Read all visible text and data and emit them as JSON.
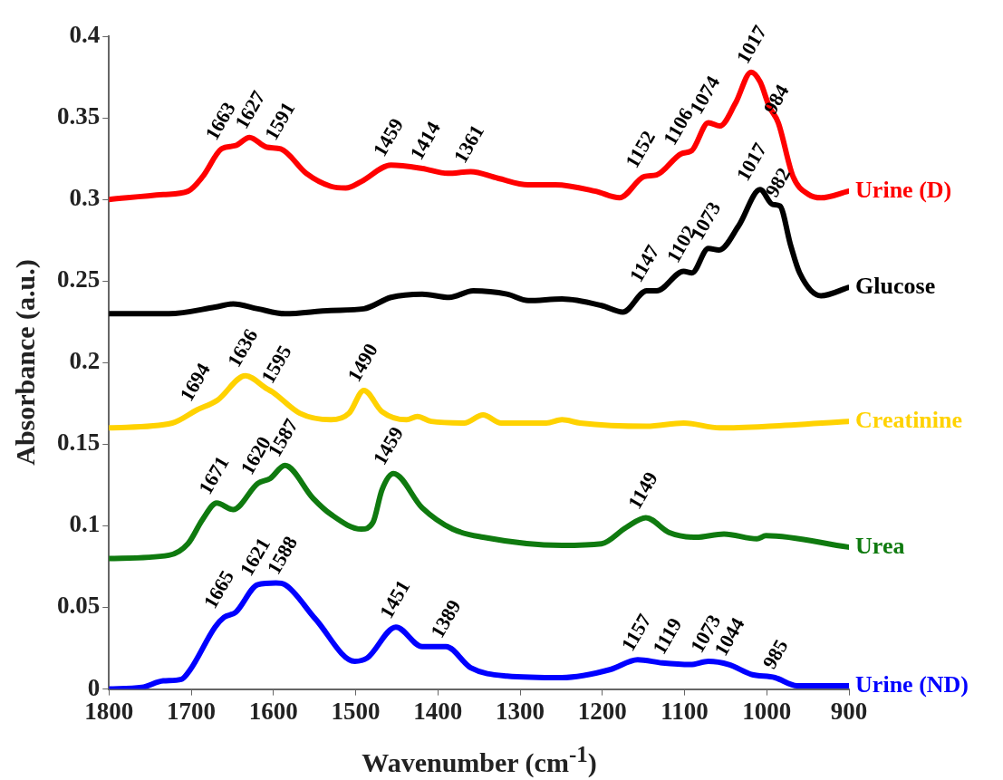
{
  "chart_data": {
    "type": "line",
    "xlabel": "Wavenumber (cm$^{-1}$)",
    "ylabel": "Absorbance (a.u.)",
    "xlim": [
      1800,
      900
    ],
    "xticks": [
      1800,
      1700,
      1600,
      1500,
      1400,
      1300,
      1200,
      1100,
      1000,
      900
    ],
    "ylim": [
      0,
      0.4
    ],
    "yticks": [
      0,
      0.05,
      0.1,
      0.15,
      0.2,
      0.25,
      0.3,
      0.35,
      0.4
    ],
    "legend": false,
    "series": [
      {
        "name": "Urine (D)",
        "color": "#ff0000",
        "x": [
          1800,
          1734,
          1704,
          1686,
          1663,
          1646,
          1629,
          1608,
          1591,
          1560,
          1530,
          1512,
          1493,
          1457,
          1419,
          1388,
          1360,
          1327,
          1290,
          1257,
          1208,
          1179,
          1149,
          1134,
          1104,
          1091,
          1071,
          1057,
          1038,
          1019,
          1008,
          997,
          986,
          968,
          949,
          934,
          901
        ],
        "values": [
          0.3,
          0.303,
          0.305,
          0.314,
          0.331,
          0.333,
          0.338,
          0.332,
          0.331,
          0.316,
          0.308,
          0.307,
          0.311,
          0.321,
          0.319,
          0.316,
          0.317,
          0.313,
          0.309,
          0.309,
          0.305,
          0.301,
          0.314,
          0.315,
          0.328,
          0.33,
          0.347,
          0.345,
          0.359,
          0.378,
          0.372,
          0.357,
          0.347,
          0.314,
          0.303,
          0.301,
          0.305
        ]
      },
      {
        "name": "Glucose",
        "color": "#000000",
        "x": [
          1800,
          1727,
          1671,
          1649,
          1619,
          1586,
          1530,
          1490,
          1457,
          1419,
          1386,
          1357,
          1316,
          1290,
          1249,
          1201,
          1175,
          1146,
          1134,
          1101,
          1091,
          1071,
          1058,
          1034,
          1008,
          993,
          984,
          971,
          960,
          934,
          901
        ],
        "values": [
          0.23,
          0.23,
          0.234,
          0.236,
          0.233,
          0.23,
          0.232,
          0.233,
          0.24,
          0.242,
          0.24,
          0.244,
          0.242,
          0.238,
          0.239,
          0.235,
          0.231,
          0.244,
          0.244,
          0.256,
          0.255,
          0.27,
          0.269,
          0.284,
          0.306,
          0.297,
          0.296,
          0.272,
          0.255,
          0.241,
          0.246
        ]
      },
      {
        "name": "Creatinine",
        "color": "#ffd200",
        "x": [
          1800,
          1723,
          1693,
          1668,
          1634,
          1608,
          1601,
          1568,
          1530,
          1508,
          1490,
          1468,
          1438,
          1425,
          1408,
          1368,
          1345,
          1323,
          1268,
          1249,
          1227,
          1146,
          1101,
          1057,
          997,
          901
        ],
        "values": [
          0.16,
          0.163,
          0.171,
          0.177,
          0.192,
          0.184,
          0.182,
          0.169,
          0.165,
          0.169,
          0.183,
          0.17,
          0.165,
          0.167,
          0.164,
          0.163,
          0.168,
          0.163,
          0.163,
          0.165,
          0.163,
          0.161,
          0.163,
          0.16,
          0.161,
          0.164
        ]
      },
      {
        "name": "Urea",
        "color": "#0f7a0f",
        "x": [
          1800,
          1727,
          1704,
          1686,
          1669,
          1649,
          1619,
          1604,
          1586,
          1552,
          1530,
          1493,
          1479,
          1468,
          1454,
          1419,
          1382,
          1345,
          1249,
          1201,
          1171,
          1147,
          1119,
          1086,
          1052,
          1012,
          1001,
          901
        ],
        "values": [
          0.08,
          0.082,
          0.089,
          0.104,
          0.114,
          0.11,
          0.126,
          0.129,
          0.137,
          0.117,
          0.107,
          0.098,
          0.102,
          0.122,
          0.132,
          0.111,
          0.098,
          0.093,
          0.088,
          0.089,
          0.099,
          0.105,
          0.096,
          0.093,
          0.095,
          0.092,
          0.094,
          0.087
        ]
      },
      {
        "name": "Urine (ND)",
        "color": "#0000ff",
        "x": [
          1800,
          1760,
          1734,
          1712,
          1701,
          1671,
          1660,
          1646,
          1619,
          1597,
          1586,
          1549,
          1501,
          1486,
          1451,
          1419,
          1390,
          1360,
          1316,
          1249,
          1190,
          1157,
          1127,
          1093,
          1071,
          1046,
          1019,
          990,
          963,
          901
        ],
        "values": [
          0.0,
          0.001,
          0.005,
          0.006,
          0.012,
          0.038,
          0.044,
          0.047,
          0.064,
          0.065,
          0.064,
          0.043,
          0.017,
          0.019,
          0.038,
          0.026,
          0.026,
          0.013,
          0.008,
          0.007,
          0.012,
          0.018,
          0.016,
          0.015,
          0.017,
          0.015,
          0.009,
          0.007,
          0.002,
          0.002
        ]
      }
    ],
    "annotations": [
      {
        "text": "1663",
        "x": 1663,
        "y": 0.331
      },
      {
        "text": "1627",
        "x": 1627,
        "y": 0.338
      },
      {
        "text": "1591",
        "x": 1591,
        "y": 0.331
      },
      {
        "text": "1459",
        "x": 1459,
        "y": 0.321
      },
      {
        "text": "1414",
        "x": 1414,
        "y": 0.319
      },
      {
        "text": "1361",
        "x": 1361,
        "y": 0.317
      },
      {
        "text": "1152",
        "x": 1152,
        "y": 0.314
      },
      {
        "text": "1106",
        "x": 1106,
        "y": 0.328
      },
      {
        "text": "1074",
        "x": 1074,
        "y": 0.347
      },
      {
        "text": "1017",
        "x": 1017,
        "y": 0.378
      },
      {
        "text": "984",
        "x": 984,
        "y": 0.347
      },
      {
        "text": "1147",
        "x": 1147,
        "y": 0.244
      },
      {
        "text": "1102",
        "x": 1102,
        "y": 0.256
      },
      {
        "text": "1073",
        "x": 1073,
        "y": 0.27
      },
      {
        "text": "1017",
        "x": 1017,
        "y": 0.306
      },
      {
        "text": "982",
        "x": 982,
        "y": 0.296
      },
      {
        "text": "1694",
        "x": 1694,
        "y": 0.171
      },
      {
        "text": "1636",
        "x": 1636,
        "y": 0.192
      },
      {
        "text": "1595",
        "x": 1595,
        "y": 0.182
      },
      {
        "text": "1490",
        "x": 1490,
        "y": 0.183
      },
      {
        "text": "1671",
        "x": 1671,
        "y": 0.114
      },
      {
        "text": "1620",
        "x": 1620,
        "y": 0.126
      },
      {
        "text": "1587",
        "x": 1587,
        "y": 0.137
      },
      {
        "text": "1459",
        "x": 1459,
        "y": 0.132
      },
      {
        "text": "1149",
        "x": 1149,
        "y": 0.105
      },
      {
        "text": "1665",
        "x": 1665,
        "y": 0.044
      },
      {
        "text": "1621",
        "x": 1621,
        "y": 0.064
      },
      {
        "text": "1588",
        "x": 1588,
        "y": 0.065
      },
      {
        "text": "1451",
        "x": 1451,
        "y": 0.038
      },
      {
        "text": "1389",
        "x": 1389,
        "y": 0.026
      },
      {
        "text": "1157",
        "x": 1157,
        "y": 0.018
      },
      {
        "text": "1119",
        "x": 1119,
        "y": 0.016
      },
      {
        "text": "1073",
        "x": 1073,
        "y": 0.017
      },
      {
        "text": "1044",
        "x": 1044,
        "y": 0.015
      },
      {
        "text": "985",
        "x": 985,
        "y": 0.007
      }
    ]
  }
}
